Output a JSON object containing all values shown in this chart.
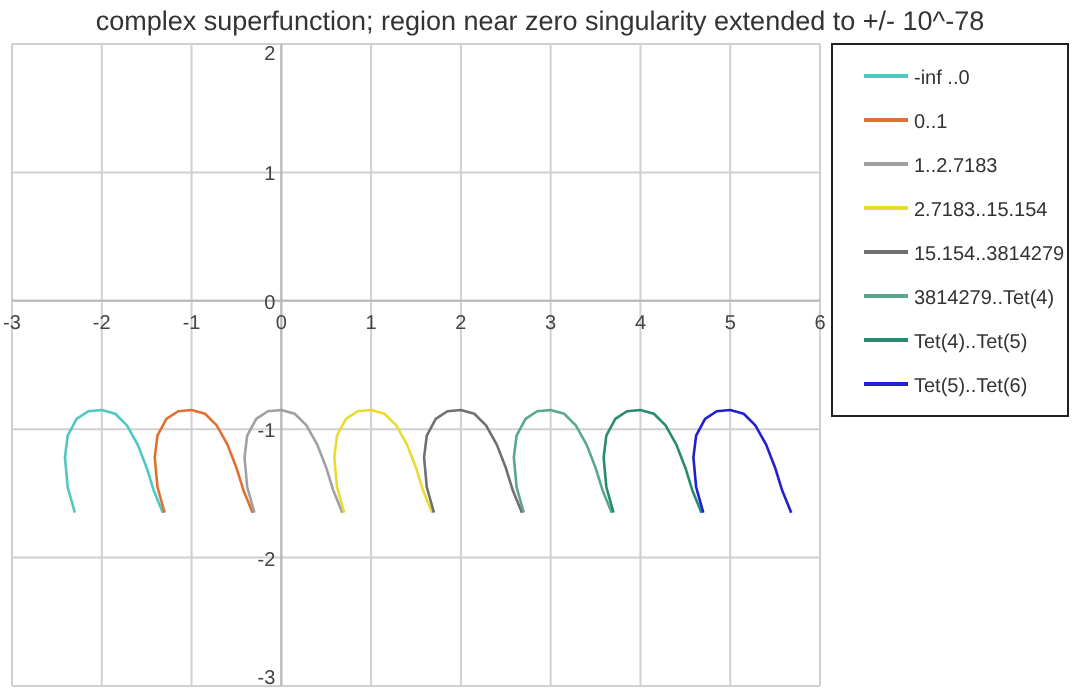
{
  "chart_data": {
    "type": "line",
    "title": "complex superfunction; region near zero singularity extended to +/- 10^-78",
    "xlim": [
      -3,
      6
    ],
    "xticks": [
      -3,
      -2,
      -1,
      0,
      1,
      2,
      3,
      4,
      5,
      6
    ],
    "ylim": [
      -3,
      2
    ],
    "yticks": [
      -3,
      -2,
      -1,
      0,
      1,
      2
    ],
    "grid": true,
    "legend": "top right",
    "marker": "none",
    "line_style": "solid",
    "series": [
      {
        "name": "-inf ..0",
        "color": "#4fc9c0",
        "x": [
          -2.3,
          -2.38,
          -2.41,
          -2.38,
          -2.28,
          -2.15,
          -2,
          -1.85,
          -1.72,
          -1.6,
          -1.5,
          -1.42,
          -1.32
        ],
        "values": [
          -1.65,
          -1.45,
          -1.22,
          -1.05,
          -0.92,
          -0.86,
          -0.85,
          -0.88,
          -0.97,
          -1.12,
          -1.3,
          -1.48,
          -1.65
        ]
      },
      {
        "name": "0..1",
        "color": "#e07030",
        "x": [
          -1.3,
          -1.38,
          -1.41,
          -1.38,
          -1.28,
          -1.15,
          -1,
          -0.85,
          -0.72,
          -0.6,
          -0.5,
          -0.42,
          -0.32
        ],
        "values": [
          -1.65,
          -1.45,
          -1.22,
          -1.05,
          -0.92,
          -0.86,
          -0.85,
          -0.88,
          -0.97,
          -1.12,
          -1.3,
          -1.48,
          -1.65
        ]
      },
      {
        "name": "1..2.7183",
        "color": "#a0a0a0",
        "x": [
          -0.3,
          -0.38,
          -0.41,
          -0.38,
          -0.28,
          -0.15,
          0,
          0.15,
          0.28,
          0.4,
          0.5,
          0.58,
          0.68
        ],
        "values": [
          -1.65,
          -1.45,
          -1.22,
          -1.05,
          -0.92,
          -0.86,
          -0.85,
          -0.88,
          -0.97,
          -1.12,
          -1.3,
          -1.48,
          -1.65
        ]
      },
      {
        "name": "2.7183..15.154",
        "color": "#e8dc30",
        "x": [
          0.7,
          0.62,
          0.59,
          0.62,
          0.72,
          0.85,
          1,
          1.15,
          1.28,
          1.4,
          1.5,
          1.58,
          1.68
        ],
        "values": [
          -1.65,
          -1.45,
          -1.22,
          -1.05,
          -0.92,
          -0.86,
          -0.85,
          -0.88,
          -0.97,
          -1.12,
          -1.3,
          -1.48,
          -1.65
        ]
      },
      {
        "name": "15.154..3814279",
        "color": "#707070",
        "x": [
          1.7,
          1.62,
          1.59,
          1.62,
          1.72,
          1.85,
          2,
          2.15,
          2.28,
          2.4,
          2.5,
          2.58,
          2.68
        ],
        "values": [
          -1.65,
          -1.45,
          -1.22,
          -1.05,
          -0.92,
          -0.86,
          -0.85,
          -0.88,
          -0.97,
          -1.12,
          -1.3,
          -1.48,
          -1.65
        ]
      },
      {
        "name": "3814279..Tet(4)",
        "color": "#5aa88a",
        "x": [
          2.7,
          2.62,
          2.59,
          2.62,
          2.72,
          2.85,
          3,
          3.15,
          3.28,
          3.4,
          3.5,
          3.58,
          3.68
        ],
        "values": [
          -1.65,
          -1.45,
          -1.22,
          -1.05,
          -0.92,
          -0.86,
          -0.85,
          -0.88,
          -0.97,
          -1.12,
          -1.3,
          -1.48,
          -1.65
        ]
      },
      {
        "name": "Tet(4)..Tet(5)",
        "color": "#2a8a70",
        "x": [
          3.7,
          3.62,
          3.59,
          3.62,
          3.72,
          3.85,
          4,
          4.15,
          4.28,
          4.4,
          4.5,
          4.58,
          4.68
        ],
        "values": [
          -1.65,
          -1.45,
          -1.22,
          -1.05,
          -0.92,
          -0.86,
          -0.85,
          -0.88,
          -0.97,
          -1.12,
          -1.3,
          -1.48,
          -1.65
        ]
      },
      {
        "name": "Tet(5)..Tet(6)",
        "color": "#2020d0",
        "x": [
          4.7,
          4.62,
          4.59,
          4.62,
          4.72,
          4.85,
          5,
          5.15,
          5.28,
          5.4,
          5.5,
          5.58,
          5.68
        ],
        "values": [
          -1.65,
          -1.45,
          -1.22,
          -1.05,
          -0.92,
          -0.86,
          -0.85,
          -0.88,
          -0.97,
          -1.12,
          -1.3,
          -1.48,
          -1.65
        ]
      }
    ]
  }
}
